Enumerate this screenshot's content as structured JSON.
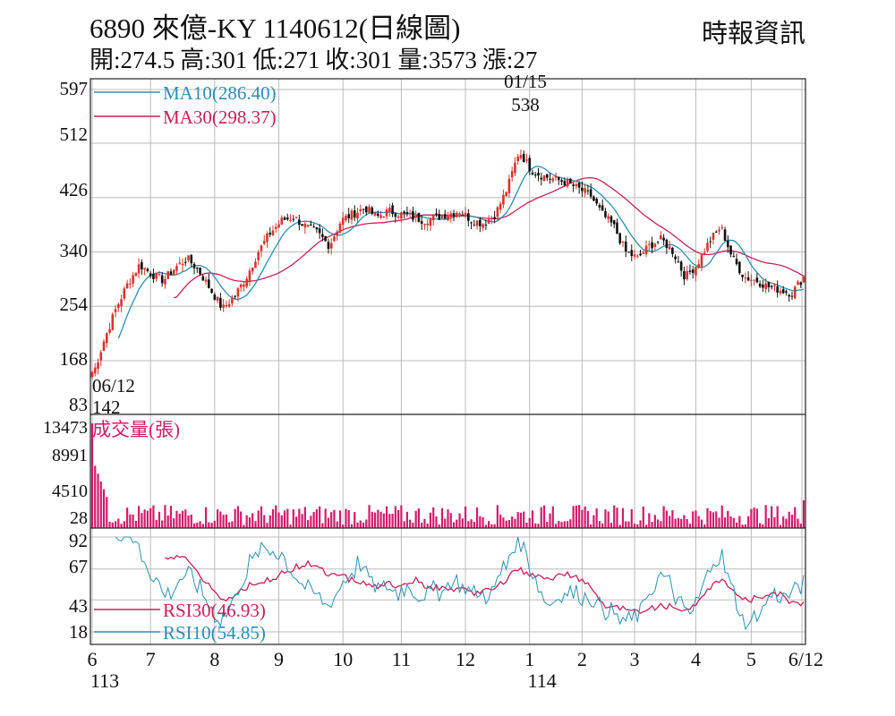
{
  "header": {
    "title": "6890  來億-KY 1140612(日線圖)",
    "source": "時報資訊",
    "stats": [
      {
        "label": "開",
        "value": "274.5"
      },
      {
        "label": "高",
        "value": "301"
      },
      {
        "label": "低",
        "value": "271"
      },
      {
        "label": "收",
        "value": "301"
      },
      {
        "label": "量",
        "value": "3573"
      },
      {
        "label": "漲",
        "value": "27"
      }
    ]
  },
  "colors": {
    "up": "#d9342b",
    "down": "#111111",
    "ma10": "#2a8fb5",
    "ma30": "#c8205a",
    "volume": "#d5196b",
    "rsi30": "#c8205a",
    "rsi10": "#2a8fb5",
    "grid": "#bbbbbb"
  },
  "chart_data": {
    "type": "candlestick",
    "price_panel": {
      "y_ticks": [
        "597",
        "512",
        "426",
        "340",
        "254",
        "168",
        "83"
      ],
      "ylim": [
        83,
        597
      ],
      "legend": [
        {
          "name": "MA10(286.40)",
          "color": "#2a8fb5"
        },
        {
          "name": "MA30(298.37)",
          "color": "#c8205a"
        }
      ],
      "annotations": [
        {
          "date": "01/15",
          "value": "538",
          "kind": "high"
        },
        {
          "date": "06/12",
          "value": "142",
          "kind": "low"
        }
      ],
      "approx_close_by_month": {
        "6": [
          142,
          200,
          250,
          290
        ],
        "7": [
          320,
          305,
          295,
          315,
          330
        ],
        "8": [
          310,
          280,
          250,
          270,
          300
        ],
        "9": [
          340,
          370,
          390,
          395,
          380
        ],
        "10": [
          370,
          350,
          390,
          400,
          410
        ],
        "11": [
          395,
          405,
          400,
          395,
          390
        ],
        "12": [
          395,
          400,
          405,
          390,
          385
        ],
        "1": [
          400,
          440,
          500,
          470,
          460
        ],
        "2": [
          455,
          450,
          440,
          430
        ],
        "3": [
          400,
          380,
          340,
          330,
          350
        ],
        "4": [
          360,
          340,
          300,
          320,
          355
        ],
        "5": [
          380,
          330,
          300,
          295,
          285
        ],
        "6b": [
          280,
          275,
          301
        ]
      }
    },
    "volume_panel": {
      "title": "成交量(張)",
      "y_ticks": [
        "13473",
        "8991",
        "4510",
        "28"
      ],
      "ylim": [
        28,
        13473
      ]
    },
    "rsi_panel": {
      "y_ticks": [
        "92",
        "67",
        "43",
        "18"
      ],
      "ylim": [
        18,
        92
      ],
      "legend": [
        {
          "name": "RSI30(46.93)",
          "color": "#c8205a"
        },
        {
          "name": "RSI10(54.85)",
          "color": "#2a8fb5"
        }
      ]
    },
    "x_axis": {
      "months": [
        "6",
        "7",
        "8",
        "9",
        "10",
        "11",
        "12",
        "1",
        "2",
        "3",
        "4",
        "5",
        "6/12"
      ],
      "years": [
        {
          "label": "113",
          "at_month": "6"
        },
        {
          "label": "114",
          "at_month": "1"
        }
      ]
    }
  }
}
